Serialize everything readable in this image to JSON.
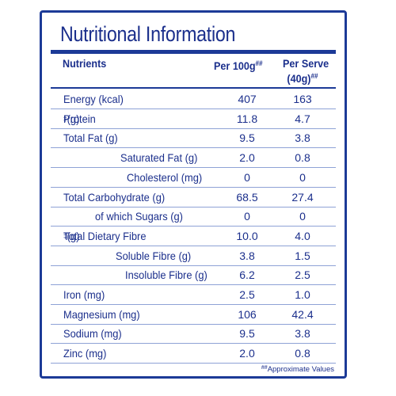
{
  "panel": {
    "title": "Nutritional Information",
    "headers": {
      "nutrients": "Nutrients",
      "per100": "Per 100g",
      "per100_mark": "##",
      "perserve_line1": "Per Serve",
      "perserve_line2": "(40g)",
      "perserve_mark": "##"
    },
    "rows": [
      {
        "label": "Energy (kcal)",
        "mark": "",
        "unit": "",
        "v1": "407",
        "v2": "163"
      },
      {
        "label": "Protein",
        "mark": "‡",
        "unit": " (g)",
        "v1": "11.8",
        "v2": "4.7"
      },
      {
        "label": "Total Fat (g)",
        "mark": "",
        "unit": "",
        "v1": "9.5",
        "v2": "3.8"
      },
      {
        "label": "Saturated Fat (g)",
        "mark": "",
        "unit": "",
        "v1": "2.0",
        "v2": "0.8"
      },
      {
        "label": "Cholesterol (mg)",
        "mark": "",
        "unit": "",
        "v1": "0",
        "v2": "0"
      },
      {
        "label": "Total Carbohydrate (g)",
        "mark": "",
        "unit": "",
        "v1": "68.5",
        "v2": "27.4"
      },
      {
        "label": "of which Sugars (g)",
        "mark": "",
        "unit": "",
        "v1": "0",
        "v2": "0"
      },
      {
        "label": "Total Dietary Fibre",
        "mark": "‡",
        "unit": " (g)",
        "v1": "10.0",
        "v2": "4.0"
      },
      {
        "label": "Soluble Fibre (g)",
        "mark": "",
        "unit": "",
        "v1": "3.8",
        "v2": "1.5"
      },
      {
        "label": "Insoluble Fibre (g)",
        "mark": "",
        "unit": "",
        "v1": "6.2",
        "v2": "2.5"
      },
      {
        "label": "Iron (mg)",
        "mark": "",
        "unit": "",
        "v1": "2.5",
        "v2": "1.0"
      },
      {
        "label": "Magnesium (mg)",
        "mark": "",
        "unit": "",
        "v1": "106",
        "v2": "42.4"
      },
      {
        "label": "Sodium (mg)",
        "mark": "",
        "unit": "",
        "v1": "9.5",
        "v2": "3.8"
      },
      {
        "label": "Zinc (mg)",
        "mark": "",
        "unit": "",
        "v1": "2.0",
        "v2": "0.8"
      }
    ],
    "footnote_mark": "##",
    "footnote": "Approximate Values"
  },
  "colors": {
    "text": "#1b2f8c",
    "border": "#1c3a97",
    "row_divider": "#8ea2d6",
    "background": "#ffffff"
  }
}
